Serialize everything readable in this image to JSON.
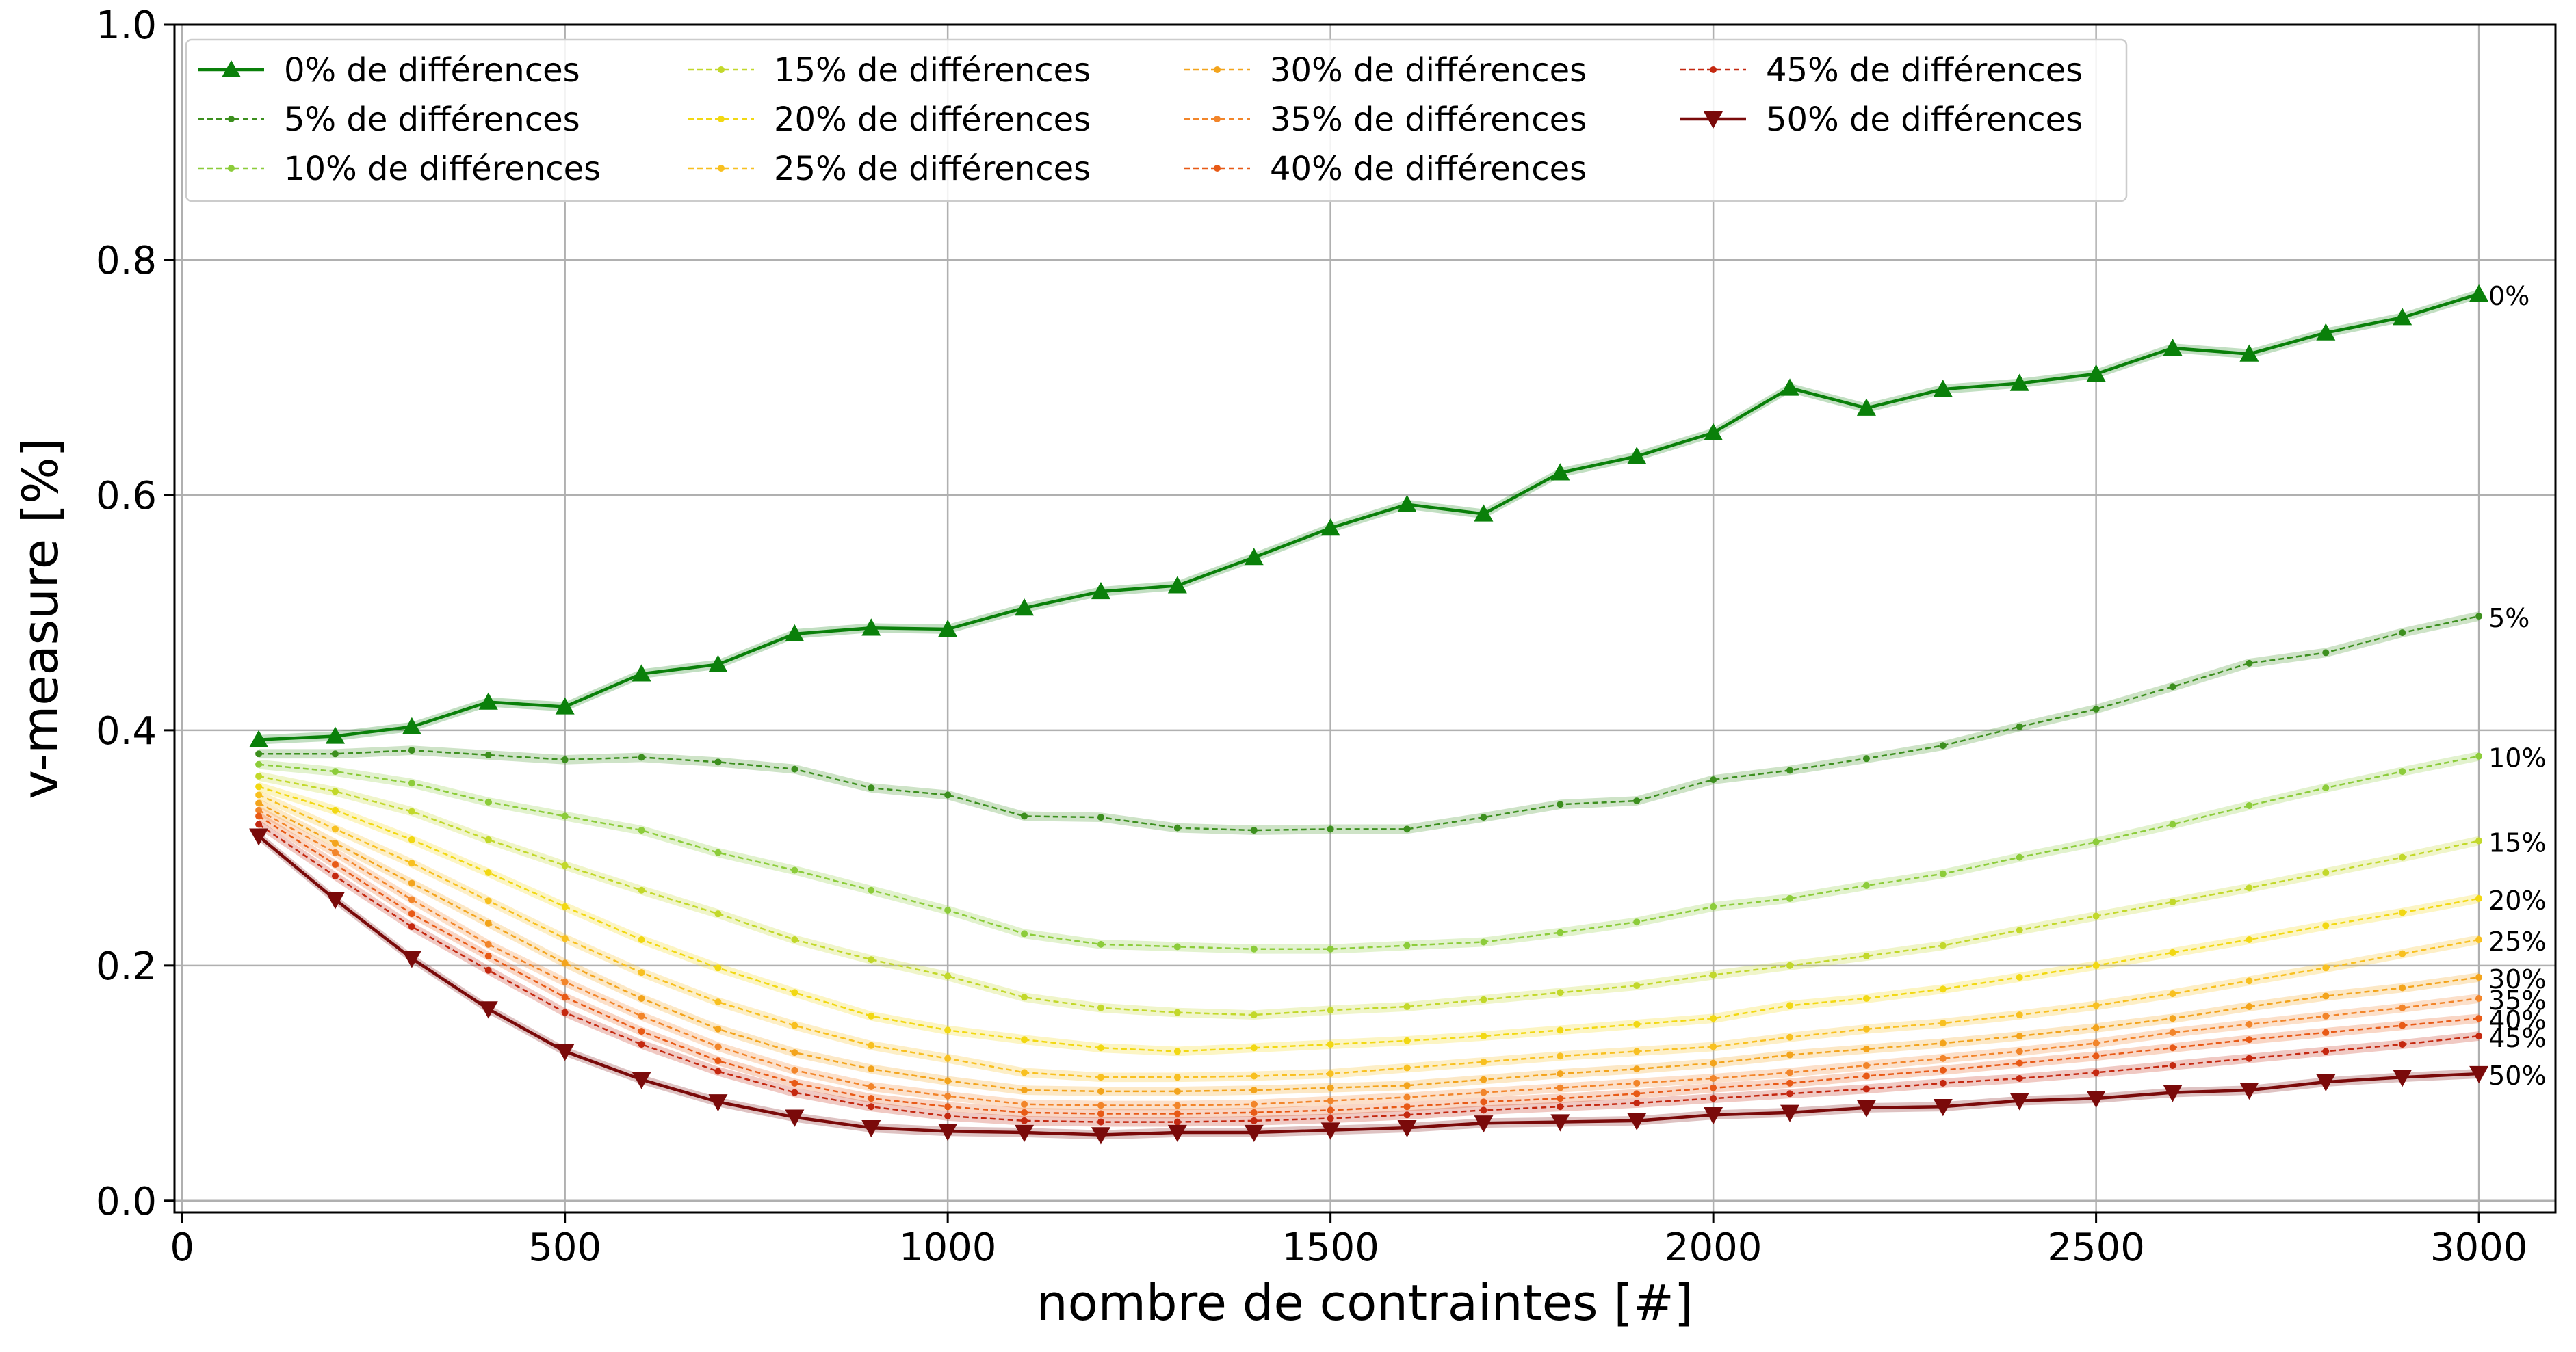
{
  "chart_data": {
    "type": "line",
    "xlabel": "nombre de contraintes [#]",
    "ylabel": "v-measure [%]",
    "xlim": [
      -10,
      3100
    ],
    "ylim": [
      -0.01,
      1.0
    ],
    "xticks": [
      0,
      500,
      1000,
      1500,
      2000,
      2500,
      3000
    ],
    "xtick_labels": [
      "0",
      "500",
      "1000",
      "1500",
      "2000",
      "2500",
      "3000"
    ],
    "yticks": [
      0.0,
      0.2,
      0.4,
      0.6,
      0.8,
      1.0
    ],
    "ytick_labels": [
      "0.0",
      "0.2",
      "0.4",
      "0.6",
      "0.8",
      "1.0"
    ],
    "grid": true,
    "legend_position": "top-left",
    "legend_columns": 4,
    "x": [
      100,
      200,
      300,
      400,
      500,
      600,
      700,
      800,
      900,
      1000,
      1100,
      1200,
      1300,
      1400,
      1500,
      1600,
      1700,
      1800,
      1900,
      2000,
      2100,
      2200,
      2300,
      2400,
      2500,
      2600,
      2700,
      2800,
      2900,
      3000
    ],
    "series": [
      {
        "name": " 0% de différences",
        "end_label": "0%",
        "color": "#0a800a",
        "dashed": false,
        "marker": "triangle-up",
        "values": [
          0.392,
          0.395,
          0.403,
          0.424,
          0.42,
          0.448,
          0.456,
          0.482,
          0.487,
          0.486,
          0.504,
          0.518,
          0.523,
          0.547,
          0.572,
          0.592,
          0.584,
          0.619,
          0.633,
          0.653,
          0.691,
          0.674,
          0.69,
          0.695,
          0.703,
          0.725,
          0.72,
          0.738,
          0.751,
          0.771
        ]
      },
      {
        "name": " 5% de différences",
        "end_label": "5%",
        "color": "#3c8f1e",
        "dashed": true,
        "marker": "dot",
        "values": [
          0.38,
          0.38,
          0.383,
          0.379,
          0.375,
          0.377,
          0.373,
          0.367,
          0.351,
          0.345,
          0.327,
          0.326,
          0.317,
          0.315,
          0.316,
          0.316,
          0.326,
          0.337,
          0.34,
          0.358,
          0.366,
          0.376,
          0.387,
          0.403,
          0.418,
          0.437,
          0.457,
          0.466,
          0.483,
          0.497
        ]
      },
      {
        "name": "10% de différences",
        "end_label": "10%",
        "color": "#8ccc3a",
        "dashed": true,
        "marker": "dot",
        "values": [
          0.371,
          0.365,
          0.355,
          0.339,
          0.327,
          0.315,
          0.296,
          0.281,
          0.264,
          0.247,
          0.227,
          0.218,
          0.216,
          0.214,
          0.214,
          0.217,
          0.22,
          0.228,
          0.237,
          0.25,
          0.257,
          0.268,
          0.278,
          0.292,
          0.305,
          0.32,
          0.336,
          0.351,
          0.365,
          0.378
        ]
      },
      {
        "name": "15% de différences",
        "end_label": "15%",
        "color": "#c2d82a",
        "dashed": true,
        "marker": "dot",
        "values": [
          0.361,
          0.348,
          0.331,
          0.307,
          0.285,
          0.264,
          0.244,
          0.222,
          0.205,
          0.191,
          0.173,
          0.164,
          0.16,
          0.158,
          0.162,
          0.165,
          0.171,
          0.177,
          0.183,
          0.192,
          0.2,
          0.208,
          0.217,
          0.23,
          0.242,
          0.254,
          0.266,
          0.279,
          0.292,
          0.306
        ]
      },
      {
        "name": "20% de différences",
        "end_label": "20%",
        "color": "#f2d812",
        "dashed": true,
        "marker": "dot",
        "values": [
          0.352,
          0.332,
          0.307,
          0.279,
          0.25,
          0.222,
          0.198,
          0.177,
          0.157,
          0.145,
          0.137,
          0.13,
          0.127,
          0.13,
          0.133,
          0.136,
          0.14,
          0.145,
          0.15,
          0.155,
          0.166,
          0.172,
          0.18,
          0.19,
          0.2,
          0.211,
          0.222,
          0.234,
          0.245,
          0.257
        ]
      },
      {
        "name": "25% de différences",
        "end_label": "25%",
        "color": "#f8c020",
        "dashed": true,
        "marker": "dot",
        "values": [
          0.345,
          0.316,
          0.287,
          0.255,
          0.223,
          0.194,
          0.169,
          0.149,
          0.132,
          0.121,
          0.109,
          0.105,
          0.105,
          0.106,
          0.108,
          0.113,
          0.118,
          0.123,
          0.127,
          0.131,
          0.139,
          0.146,
          0.151,
          0.158,
          0.166,
          0.176,
          0.187,
          0.198,
          0.21,
          0.222
        ]
      },
      {
        "name": "30% de différences",
        "end_label": "30%",
        "color": "#f3a41c",
        "dashed": true,
        "marker": "dot",
        "values": [
          0.338,
          0.304,
          0.27,
          0.236,
          0.202,
          0.172,
          0.146,
          0.126,
          0.112,
          0.102,
          0.094,
          0.093,
          0.093,
          0.094,
          0.096,
          0.098,
          0.103,
          0.108,
          0.112,
          0.117,
          0.124,
          0.129,
          0.134,
          0.14,
          0.147,
          0.155,
          0.165,
          0.174,
          0.181,
          0.19
        ]
      },
      {
        "name": "35% de différences",
        "end_label": "35%",
        "color": "#f2852a",
        "dashed": true,
        "marker": "dot",
        "values": [
          0.332,
          0.296,
          0.256,
          0.218,
          0.186,
          0.157,
          0.131,
          0.111,
          0.097,
          0.089,
          0.082,
          0.081,
          0.081,
          0.082,
          0.085,
          0.088,
          0.092,
          0.096,
          0.1,
          0.104,
          0.109,
          0.115,
          0.121,
          0.127,
          0.134,
          0.143,
          0.15,
          0.157,
          0.164,
          0.172
        ]
      },
      {
        "name": "40% de différences",
        "end_label": "40%",
        "color": "#e85a16",
        "dashed": true,
        "marker": "dot",
        "values": [
          0.327,
          0.286,
          0.244,
          0.208,
          0.173,
          0.144,
          0.119,
          0.1,
          0.087,
          0.08,
          0.075,
          0.074,
          0.074,
          0.075,
          0.077,
          0.08,
          0.084,
          0.087,
          0.091,
          0.096,
          0.1,
          0.106,
          0.111,
          0.117,
          0.123,
          0.13,
          0.137,
          0.143,
          0.149,
          0.155
        ]
      },
      {
        "name": "45% de différences",
        "end_label": "45%",
        "color": "#c42810",
        "dashed": true,
        "marker": "dot",
        "values": [
          0.32,
          0.276,
          0.233,
          0.196,
          0.16,
          0.133,
          0.11,
          0.092,
          0.08,
          0.072,
          0.068,
          0.067,
          0.067,
          0.068,
          0.07,
          0.073,
          0.077,
          0.08,
          0.083,
          0.087,
          0.091,
          0.095,
          0.1,
          0.104,
          0.109,
          0.115,
          0.121,
          0.127,
          0.133,
          0.14
        ]
      },
      {
        "name": "50% de différences",
        "end_label": "50%",
        "color": "#7a0a0a",
        "dashed": false,
        "marker": "triangle-down",
        "values": [
          0.31,
          0.256,
          0.206,
          0.163,
          0.127,
          0.103,
          0.084,
          0.071,
          0.062,
          0.059,
          0.058,
          0.056,
          0.058,
          0.058,
          0.06,
          0.062,
          0.066,
          0.067,
          0.068,
          0.073,
          0.075,
          0.079,
          0.08,
          0.085,
          0.087,
          0.092,
          0.094,
          0.101,
          0.105,
          0.108
        ]
      }
    ]
  }
}
